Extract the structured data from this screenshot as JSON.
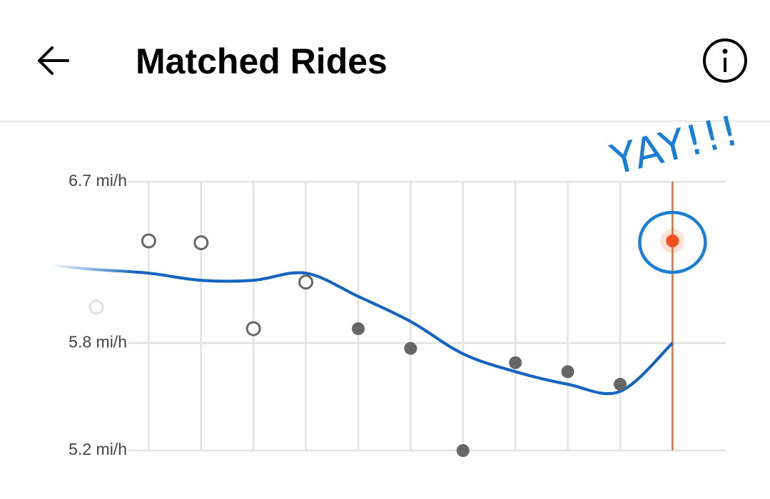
{
  "header": {
    "title": "Matched Rides"
  },
  "chart_data": {
    "type": "scatter",
    "categories": [
      null,
      null,
      null,
      null,
      null,
      null,
      null,
      null,
      null,
      null,
      null,
      null
    ],
    "series": [
      {
        "color": "#666666",
        "values": [
          6.0,
          6.37,
          6.36,
          5.88,
          6.14,
          5.88,
          5.77,
          5.2,
          5.69,
          5.64,
          5.57,
          6.37
        ],
        "point_fill": [
          "#ffffff",
          "#ffffff",
          "#ffffff",
          "#ffffff",
          "#ffffff",
          "#666666",
          "#666666",
          "#666666",
          "#666666",
          "#666666",
          "#666666",
          "#f4511e"
        ]
      },
      {
        "type": "line",
        "color": "#1565c0",
        "values": [
          6.21,
          6.19,
          6.15,
          6.15,
          6.19,
          6.06,
          5.92,
          5.74,
          5.64,
          5.57,
          5.53,
          5.8
        ]
      }
    ],
    "highlight_color": "#e0703a",
    "annotation": "YAY!!!",
    "annotation_color": "#1a7fd4",
    "ylim": [
      5.2,
      6.7
    ],
    "yticks": [
      {
        "value": 6.7,
        "label": "6.7 mi/h"
      },
      {
        "value": 5.8,
        "label": "5.8 mi/h"
      },
      {
        "value": 5.2,
        "label": "5.2 mi/h"
      }
    ],
    "grid": true
  }
}
